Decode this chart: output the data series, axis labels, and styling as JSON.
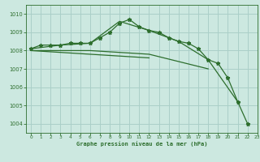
{
  "title": "Graphe pression niveau de la mer (hPa)",
  "background_color": "#cce8e0",
  "grid_color": "#aacfc8",
  "line_color": "#2d6e2d",
  "xlim": [
    -0.5,
    23
  ],
  "ylim": [
    1003.5,
    1010.5
  ],
  "yticks": [
    1004,
    1005,
    1006,
    1007,
    1008,
    1009,
    1010
  ],
  "xticks": [
    0,
    1,
    2,
    3,
    4,
    5,
    6,
    7,
    8,
    9,
    10,
    11,
    12,
    13,
    14,
    15,
    16,
    17,
    18,
    19,
    20,
    21,
    22,
    23
  ],
  "series": [
    {
      "x": [
        0,
        1,
        2,
        3,
        4,
        5,
        6,
        7,
        8,
        9,
        10,
        11,
        12,
        13,
        14,
        15,
        16,
        17,
        18,
        19,
        20,
        21,
        22
      ],
      "y": [
        1008.1,
        1008.3,
        1008.3,
        1008.3,
        1008.4,
        1008.4,
        1008.4,
        1008.7,
        1009.0,
        1009.5,
        1009.7,
        1009.3,
        1009.1,
        1009.0,
        1008.7,
        1008.5,
        1008.4,
        1008.1,
        1007.5,
        1007.3,
        1006.5,
        1005.2,
        1004.0
      ],
      "marker": true
    },
    {
      "x": [
        0,
        3,
        6,
        9,
        12,
        15,
        18,
        21
      ],
      "y": [
        1008.1,
        1008.3,
        1008.4,
        1009.6,
        1009.1,
        1008.5,
        1007.5,
        1005.2
      ],
      "marker": false
    },
    {
      "x": [
        0,
        6,
        12,
        18
      ],
      "y": [
        1008.0,
        1008.0,
        1007.8,
        1007.0
      ],
      "marker": false
    },
    {
      "x": [
        0,
        12
      ],
      "y": [
        1008.0,
        1007.6
      ],
      "marker": false
    }
  ]
}
